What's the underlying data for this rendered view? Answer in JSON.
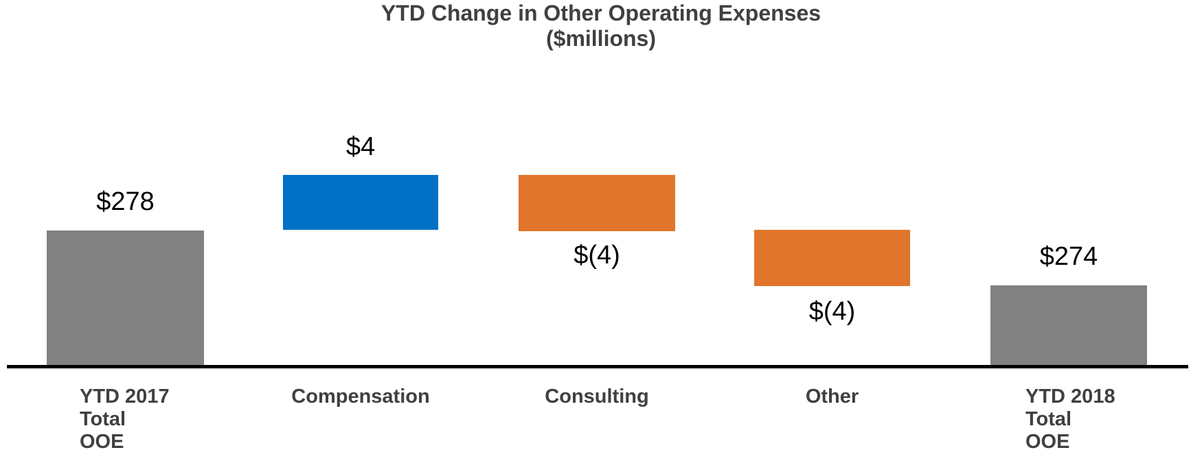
{
  "title": {
    "line1": "YTD Change in Other Operating Expenses",
    "line2": "($millions)"
  },
  "chart_data": {
    "type": "bar",
    "subtype": "waterfall",
    "title": "YTD Change in Other Operating Expenses",
    "subtitle": "($millions)",
    "unit": "$millions",
    "categories": [
      "YTD 2017 Total OOE",
      "Compensation",
      "Consulting",
      "Other",
      "YTD 2018 Total OOE"
    ],
    "values": [
      278,
      4,
      -4,
      -4,
      274
    ],
    "roles": [
      "total",
      "increase",
      "decrease",
      "decrease",
      "total"
    ],
    "value_labels": [
      "$278",
      "$4",
      "$(4)",
      "$(4)",
      "$274"
    ],
    "value_label_position": [
      "above-bar",
      "above-bar",
      "below-bar",
      "below-bar",
      "above-bar"
    ],
    "category_label_lines": [
      [
        "YTD 2017",
        "Total",
        "OOE"
      ],
      [
        "Compensation"
      ],
      [
        "Consulting"
      ],
      [
        "Other"
      ],
      [
        "YTD 2018",
        "Total",
        "OOE"
      ]
    ],
    "colors": {
      "total": "#818181",
      "increase": "#0071C5",
      "decrease": "#E1752B",
      "axis_line": "#000000",
      "title_text": "#404040",
      "category_text": "#404040",
      "value_text": "#000000"
    },
    "legend": "none",
    "grid": false,
    "baseline_note": "y-axis not shown; totals drawn from axis baseline"
  }
}
